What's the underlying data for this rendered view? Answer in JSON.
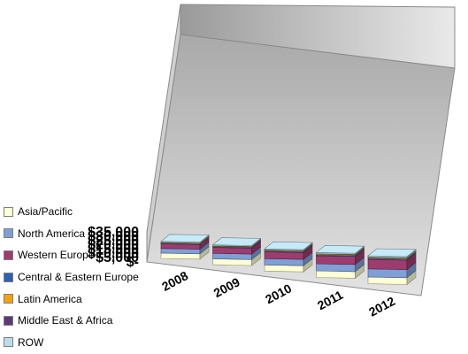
{
  "chart_data": {
    "type": "bar",
    "stacked": true,
    "three_d": true,
    "categories": [
      "2008",
      "2009",
      "2010",
      "2011",
      "2012"
    ],
    "ylim": [
      0,
      35000
    ],
    "yticks": [
      0,
      5000,
      10000,
      15000,
      20000,
      25000,
      30000,
      35000
    ],
    "ytick_labels": [
      "$-",
      "$5,000",
      "$10,000",
      "$15,000",
      "$20,000",
      "$25,000",
      "$30,000",
      "$35,000"
    ],
    "grid": false,
    "legend_position": "left",
    "series": [
      {
        "name": "Asia/Pacific",
        "color": "#FFFFD6",
        "values": [
          6200,
          6900,
          7200,
          7700,
          8000
        ]
      },
      {
        "name": "North America",
        "color": "#7F9FD7",
        "values": [
          5400,
          6400,
          7300,
          8300,
          9400
        ]
      },
      {
        "name": "Western Europe",
        "color": "#9E3C6F",
        "values": [
          5400,
          6900,
          8000,
          9300,
          11000
        ]
      },
      {
        "name": "Central & Eastern Europe",
        "color": "#2F5EB4",
        "values": [
          700,
          800,
          900,
          1000,
          1200
        ]
      },
      {
        "name": "Latin America",
        "color": "#F4A20E",
        "values": [
          700,
          800,
          900,
          1000,
          1100
        ]
      },
      {
        "name": "Middle East & Africa",
        "color": "#5C3A78",
        "values": [
          300,
          350,
          400,
          450,
          500
        ]
      },
      {
        "name": "ROW",
        "color": "#BCDDEA",
        "values": [
          1100,
          1100,
          1200,
          1300,
          1400
        ]
      }
    ]
  }
}
